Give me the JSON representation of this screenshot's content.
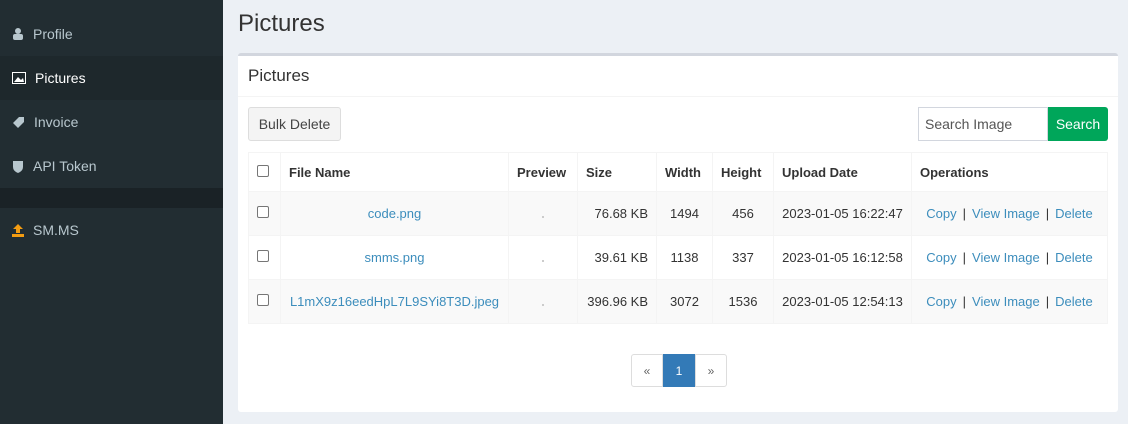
{
  "sidebar": {
    "items": [
      "Profile",
      "Pictures",
      "Invoice",
      "API Token",
      "SM.MS"
    ]
  },
  "header": {
    "title": "Pictures"
  },
  "box": {
    "title": "Pictures",
    "bulk_delete": "Bulk Delete",
    "search_placeholder": "Search Image",
    "search_button": "Search"
  },
  "table": {
    "columns": [
      "File Name",
      "Preview",
      "Size",
      "Width",
      "Height",
      "Upload Date",
      "Operations"
    ],
    "rows": [
      [
        "code.png",
        "76.68 KB",
        "1494",
        "456",
        "2023-01-05 16:22:47"
      ],
      [
        "smms.png",
        "39.61 KB",
        "1138",
        "337",
        "2023-01-05 16:12:58"
      ],
      [
        "L1mX9z16eedHpL7L9SYi8T3D.jpeg",
        "396.96 KB",
        "3072",
        "1536",
        "2023-01-05 12:54:13"
      ]
    ],
    "operations": [
      "Copy",
      "View Image",
      "Delete"
    ],
    "operation_separator": "|"
  },
  "pagination": {
    "prev": "«",
    "current": "1",
    "next": "»"
  }
}
